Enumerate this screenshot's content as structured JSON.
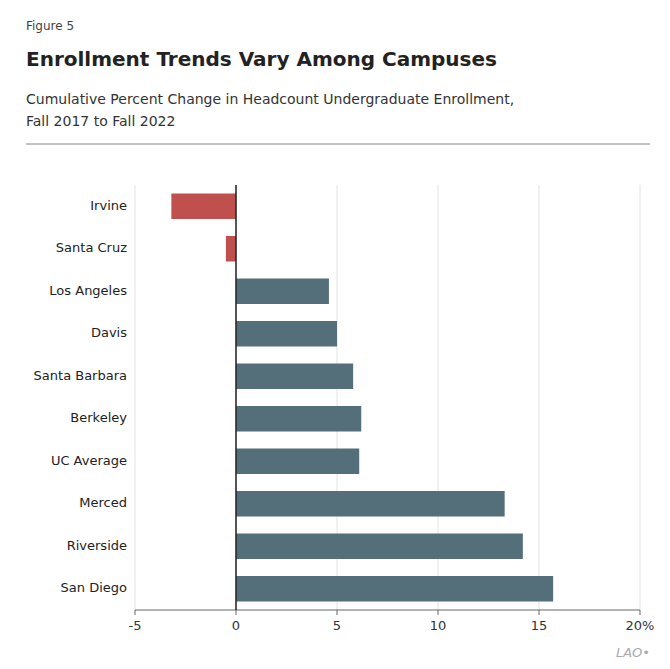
{
  "chart_data": {
    "type": "bar",
    "orientation": "horizontal",
    "title": "Enrollment Trends Vary Among Campuses",
    "subtitle": [
      "Cumulative Percent Change in Headcount Undergraduate Enrollment,",
      "Fall 2017 to Fall 2022"
    ],
    "annotations": [
      "Figure 5",
      "LAO•"
    ],
    "categories": [
      "San Diego",
      "Riverside",
      "Merced",
      "UC Average",
      "Berkeley",
      "Santa Barbara",
      "Davis",
      "Los Angeles",
      "Santa Cruz",
      "Irvine"
    ],
    "values": [
      15.7,
      14.2,
      13.3,
      6.1,
      6.2,
      5.8,
      5.0,
      4.6,
      -0.5,
      -3.2
    ],
    "colors": [
      "#546e7a",
      "#546e7a",
      "#546e7a",
      "#546e7a",
      "#546e7a",
      "#546e7a",
      "#546e7a",
      "#546e7a",
      "#c0504d",
      "#c0504d"
    ],
    "xlim": [
      -5,
      20
    ],
    "xticks": [
      -5,
      0,
      5,
      10,
      15,
      {
        "value": 20,
        "label": "20%"
      }
    ],
    "grid": true
  }
}
